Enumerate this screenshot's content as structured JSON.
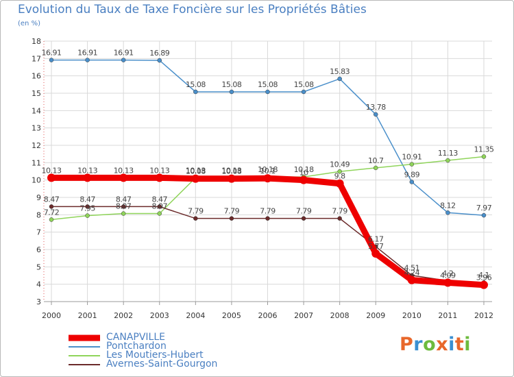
{
  "header": {
    "title": "Evolution du Taux de Taxe Foncière sur les Propriétés Bâties",
    "subtitle": "(en %)"
  },
  "brand": {
    "text": "Proxiti",
    "colors": [
      "#e8672a",
      "#3a8fd1",
      "#6dbb3e",
      "#e8672a",
      "#3a8fd1",
      "#e8672a",
      "#6dbb3e"
    ]
  },
  "chart_data": {
    "type": "line",
    "title": "Evolution du Taux de Taxe Foncière sur les Propriétés Bâties",
    "ylabel": "(en %)",
    "xlabel": "",
    "x": [
      "2000",
      "2001",
      "2002",
      "2003",
      "2004",
      "2005",
      "2006",
      "2007",
      "2008",
      "2009",
      "2010",
      "2011",
      "2012"
    ],
    "ylim": [
      3,
      18
    ],
    "yticks": [
      "3",
      "4",
      "5",
      "6",
      "7",
      "8",
      "9",
      "10",
      "11",
      "12",
      "13",
      "14",
      "15",
      "16",
      "17",
      "18"
    ],
    "grid": true,
    "legend_position": "bottom-left",
    "series": [
      {
        "name": "CANAPVILLE",
        "color": "#ee0000",
        "emphasis": true,
        "values": [
          10.13,
          10.13,
          10.13,
          10.13,
          10.08,
          10.08,
          10.1,
          10.0,
          9.8,
          5.77,
          4.24,
          4.09,
          3.96
        ],
        "labels": [
          "10.13",
          "10.13",
          "10.13",
          "10.13",
          "10.08",
          "10.08",
          "10.1",
          "10",
          "9.8",
          "5.77",
          "4.24",
          "4.09",
          "3.96"
        ]
      },
      {
        "name": "Pontchardon",
        "color": "#4a8fca",
        "emphasis": false,
        "values": [
          16.91,
          16.91,
          16.91,
          16.89,
          15.08,
          15.08,
          15.08,
          15.08,
          15.83,
          13.78,
          9.89,
          8.12,
          7.97
        ],
        "labels": [
          "16.91",
          "16.91",
          "16.91",
          "16.89",
          "15.08",
          "15.08",
          "15.08",
          "15.08",
          "15.83",
          "13.78",
          "9.89",
          "8.12",
          "7.97"
        ]
      },
      {
        "name": "Les Moutiers-Hubert",
        "color": "#8fd45a",
        "emphasis": false,
        "values": [
          7.72,
          7.95,
          8.07,
          8.07,
          10.13,
          10.13,
          10.18,
          10.18,
          10.49,
          10.7,
          10.91,
          11.13,
          11.35
        ],
        "labels": [
          "7.72",
          "7.95",
          "8.07",
          "8.07",
          "10.13",
          "10.13",
          "10.18",
          "10.18",
          "10.49",
          "10.7",
          "10.91",
          "11.13",
          "11.35"
        ]
      },
      {
        "name": "Avernes-Saint-Gourgon",
        "color": "#6b2a2a",
        "emphasis": false,
        "values": [
          8.47,
          8.47,
          8.47,
          8.47,
          7.79,
          7.79,
          7.79,
          7.79,
          7.79,
          6.17,
          4.51,
          4.2,
          4.1
        ],
        "labels": [
          "8.47",
          "8.47",
          "8.47",
          "8.47",
          "7.79",
          "7.79",
          "7.79",
          "7.79",
          "7.79",
          "6.17",
          "4.51",
          "4.2",
          "4.1"
        ]
      }
    ]
  }
}
